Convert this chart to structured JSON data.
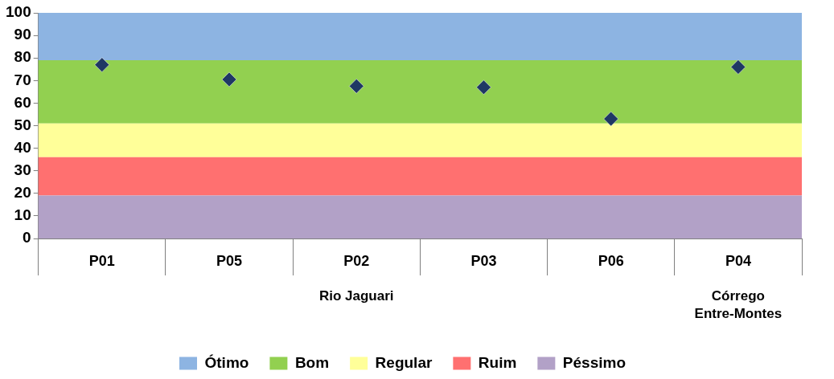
{
  "chart_data": {
    "type": "scatter",
    "categories": [
      "P01",
      "P05",
      "P02",
      "P03",
      "P06",
      "P04"
    ],
    "series": [
      {
        "color": "#1f3864",
        "values": [
          77,
          70.5,
          67.5,
          67,
          53,
          76
        ]
      }
    ],
    "marker": "diamond",
    "ylim": [
      0,
      100
    ],
    "yticks": [
      0,
      10,
      20,
      30,
      40,
      50,
      60,
      70,
      80,
      90,
      100
    ],
    "grid": false,
    "legend": "bottom",
    "bands": [
      {
        "axis": "y",
        "from": 79,
        "to": 100,
        "label": "Ótimo",
        "color": "#8db4e2"
      },
      {
        "axis": "y",
        "from": 51,
        "to": 79,
        "label": "Bom",
        "color": "#92d050"
      },
      {
        "axis": "y",
        "from": 36,
        "to": 51,
        "label": "Regular",
        "color": "#ffff99"
      },
      {
        "axis": "y",
        "from": 19,
        "to": 36,
        "label": "Ruim",
        "color": "#ff7070"
      },
      {
        "axis": "y",
        "from": 0,
        "to": 19,
        "label": "Péssimo",
        "color": "#b2a1c7"
      }
    ],
    "annotations": [
      "Rio Jaguari",
      "Córrego Entre-Montes"
    ]
  }
}
